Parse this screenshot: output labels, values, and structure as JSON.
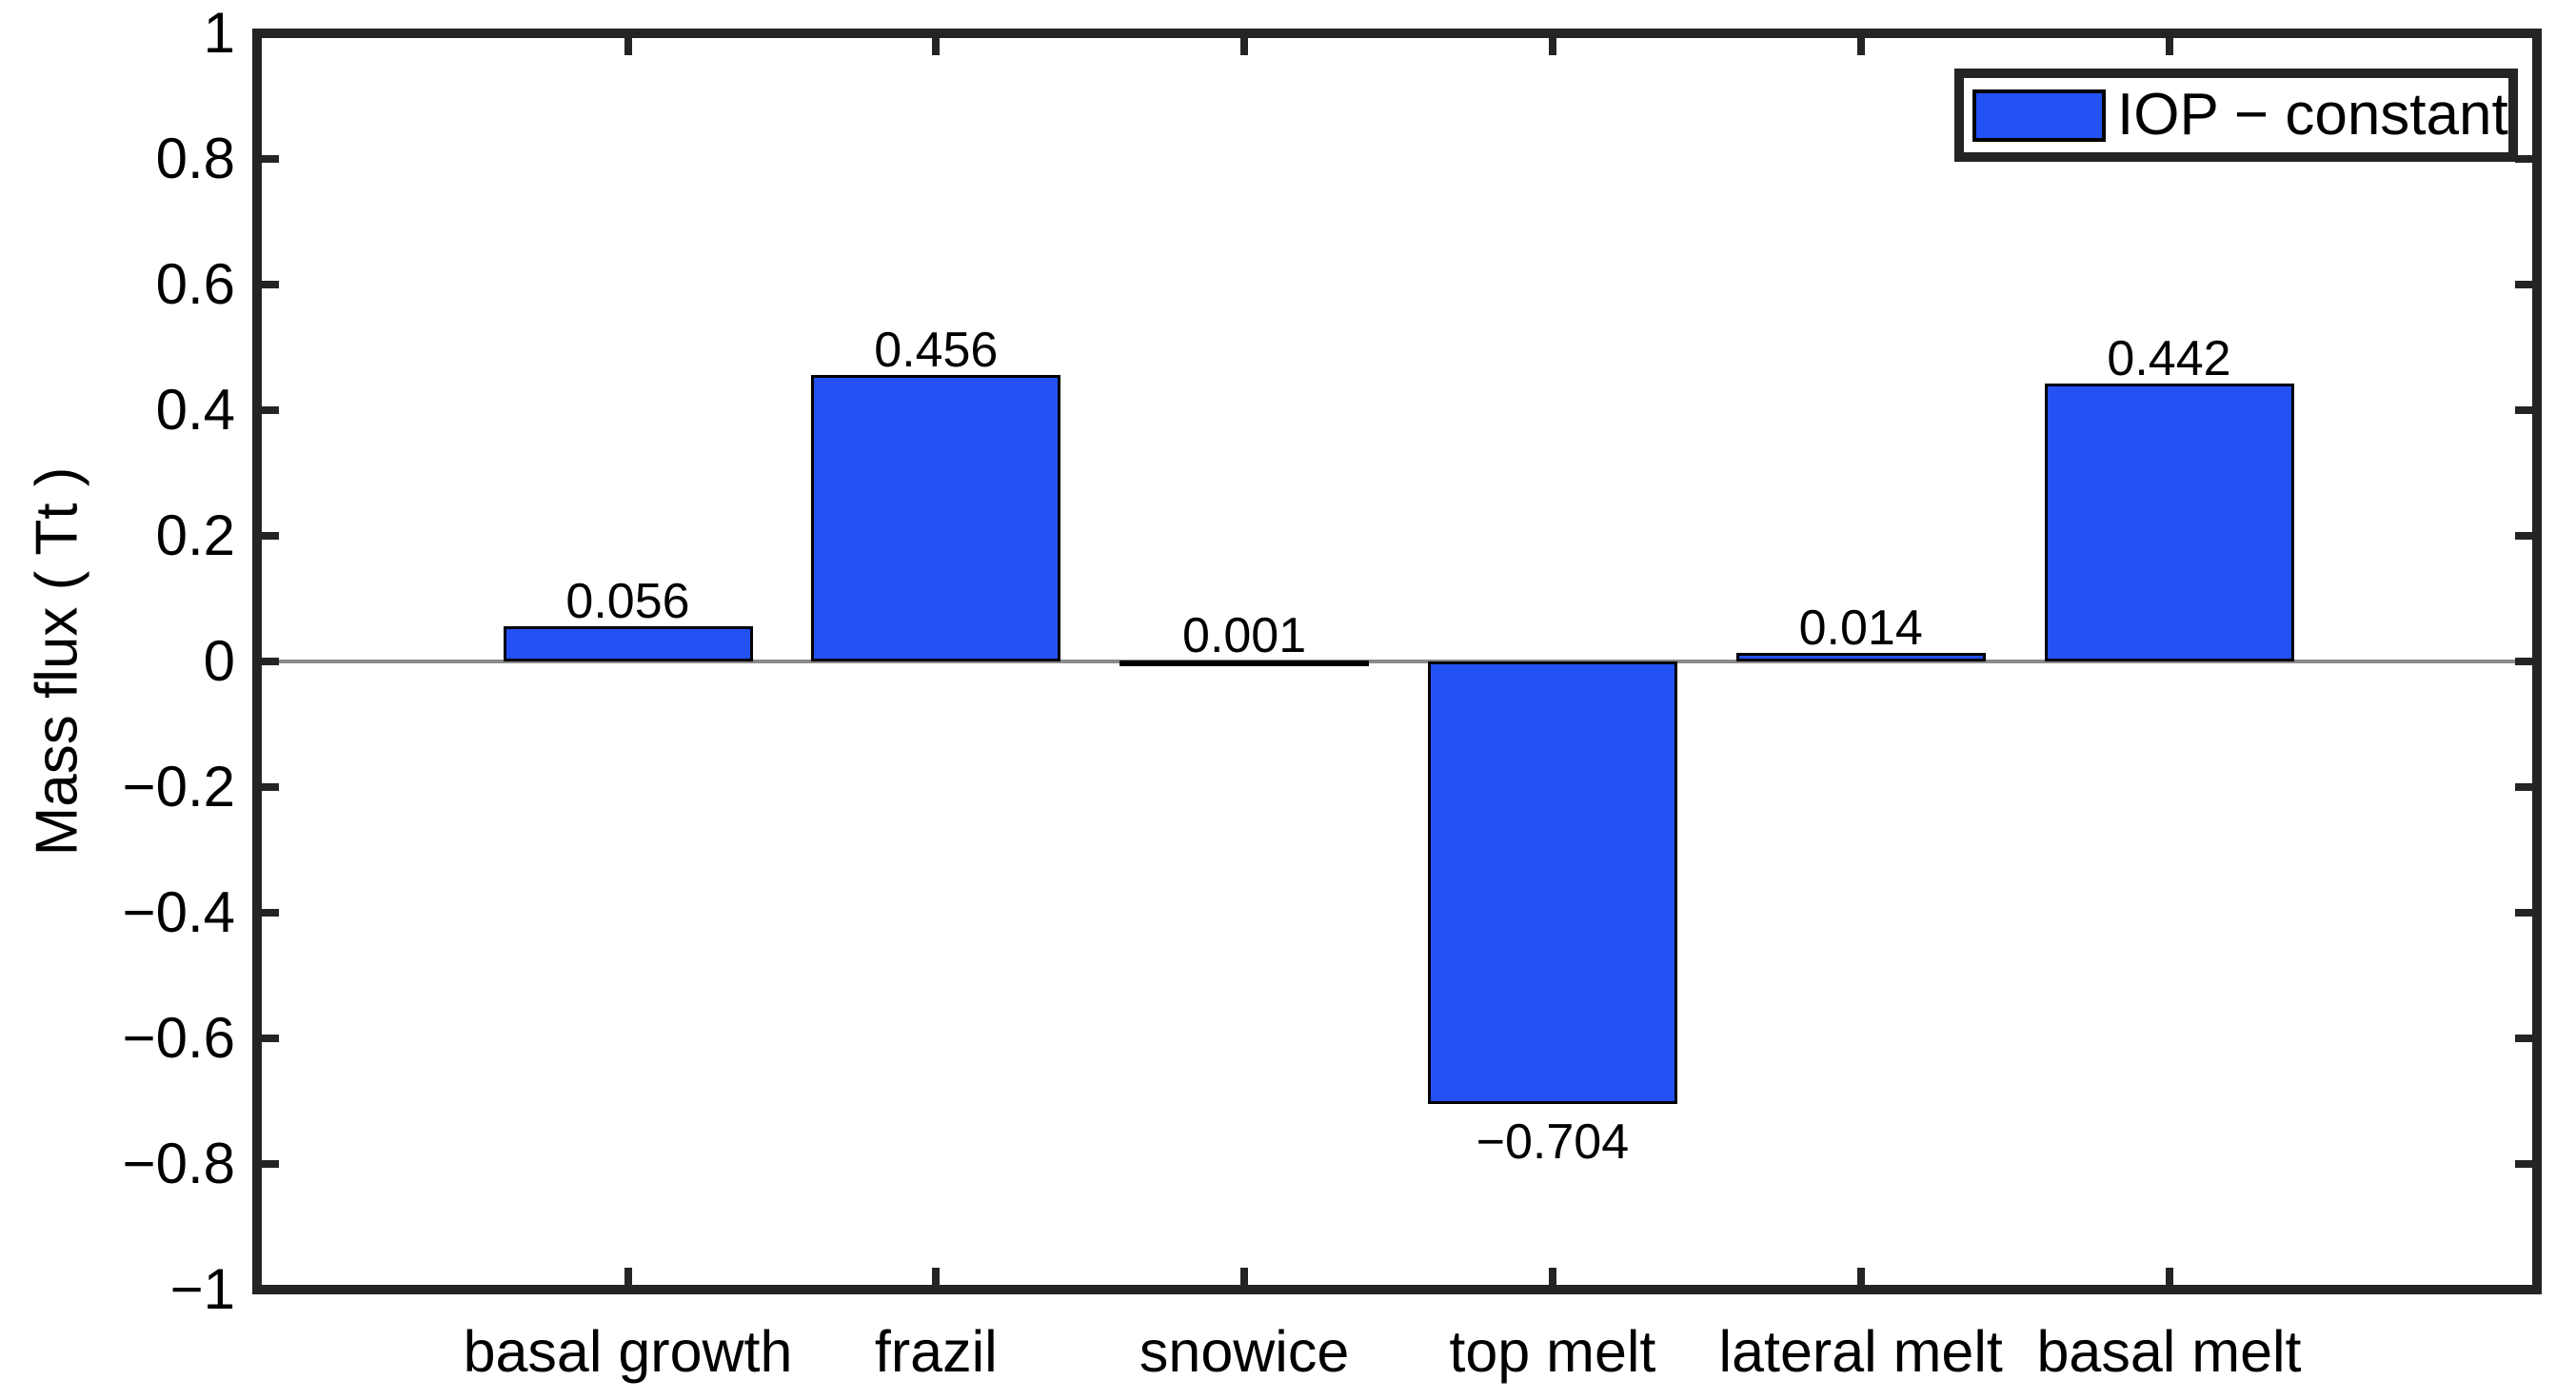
{
  "figure": {
    "background": "#ffffff",
    "axis_color": "#242424",
    "text_color": "#000000",
    "zero_line_color": "#8a8a8a",
    "bar_fill": "#2351f3",
    "bar_edge": "#000000"
  },
  "chart_data": {
    "type": "bar",
    "title": "",
    "xlabel": "",
    "ylabel": "Mass flux ( Tt )",
    "categories": [
      "basal growth",
      "frazil",
      "snowice",
      "top melt",
      "lateral melt",
      "basal melt"
    ],
    "series": [
      {
        "name": "IOP − constant",
        "values": [
          0.056,
          0.456,
          0.001,
          -0.704,
          0.014,
          0.442
        ]
      }
    ],
    "bar_value_labels": [
      "0.056",
      "0.456",
      "0.001",
      "−0.704",
      "0.014",
      "0.442"
    ],
    "ylim": [
      -1,
      1
    ],
    "yticks": [
      1,
      0.8,
      0.6,
      0.4,
      0.2,
      0,
      -0.2,
      -0.4,
      -0.6,
      -0.8,
      -1
    ],
    "ytick_labels": [
      "1",
      "0.8",
      "0.6",
      "0.4",
      "0.2",
      "0",
      "−0.2",
      "−0.4",
      "−0.6",
      "−0.8",
      "−1"
    ],
    "grid": false,
    "legend": {
      "position": "top-right",
      "entries": [
        {
          "label": "IOP − constant",
          "color": "#2351f3"
        }
      ]
    }
  }
}
